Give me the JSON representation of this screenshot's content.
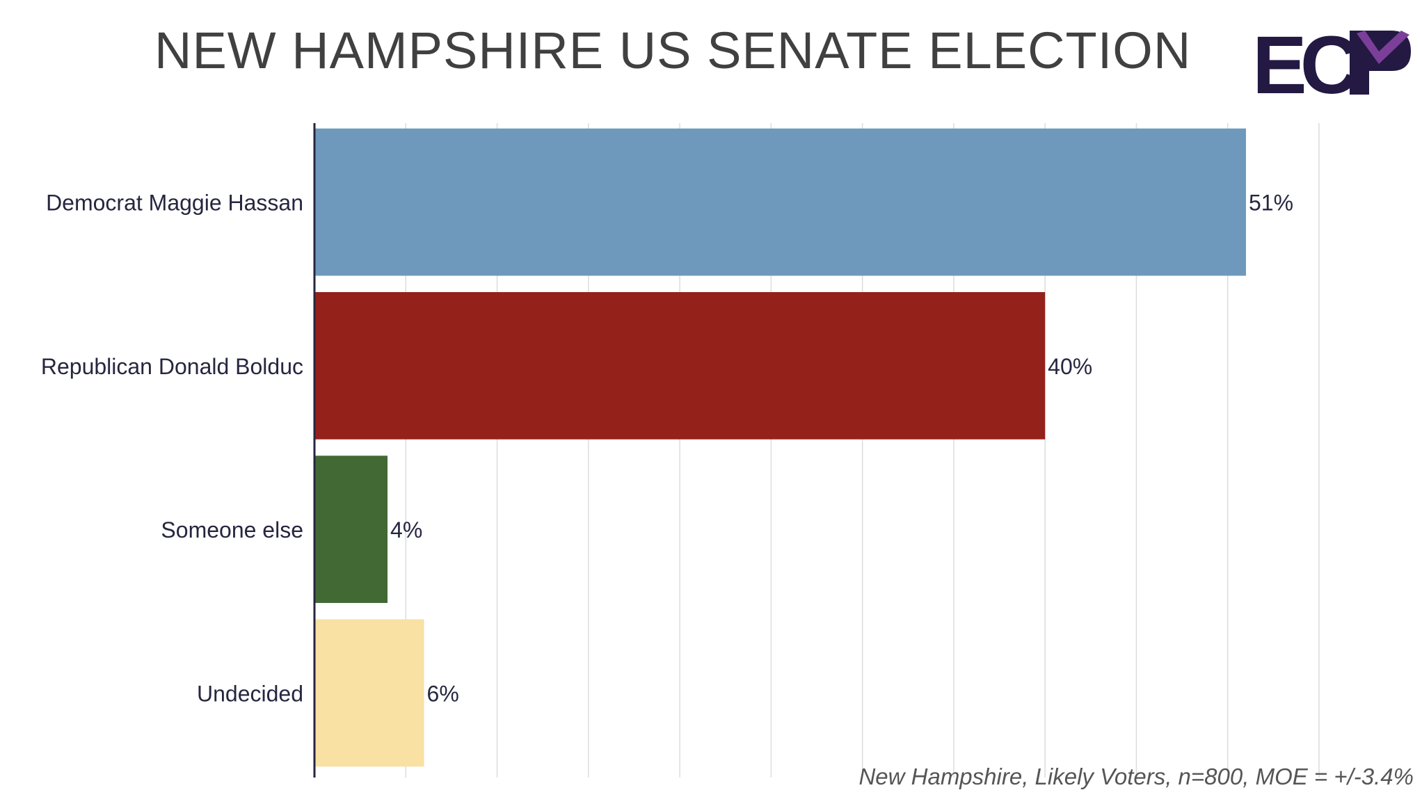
{
  "title": "NEW HAMPSHIRE US SENATE ELECTION",
  "footnote": "New Hampshire, Likely Voters, n=800, MOE = +/-3.4%",
  "logo": {
    "text": "ECP",
    "colors": {
      "letters": "#231942",
      "accent": "#7b3f99"
    }
  },
  "chart_data": {
    "type": "bar",
    "orientation": "horizontal",
    "categories": [
      "Democrat Maggie Hassan",
      "Republican Donald Bolduc",
      "Someone else",
      "Undecided"
    ],
    "values": [
      51,
      40,
      4,
      6
    ],
    "value_labels": [
      "51%",
      "40%",
      "4%",
      "6%"
    ],
    "colors": [
      "#6e99bc",
      "#95211b",
      "#426934",
      "#f9e0a3"
    ],
    "xlim": [
      0,
      55
    ],
    "x_gridlines": [
      0,
      5,
      10,
      15,
      20,
      25,
      30,
      35,
      40,
      45,
      50,
      55
    ],
    "grid": true,
    "legend": "none"
  }
}
